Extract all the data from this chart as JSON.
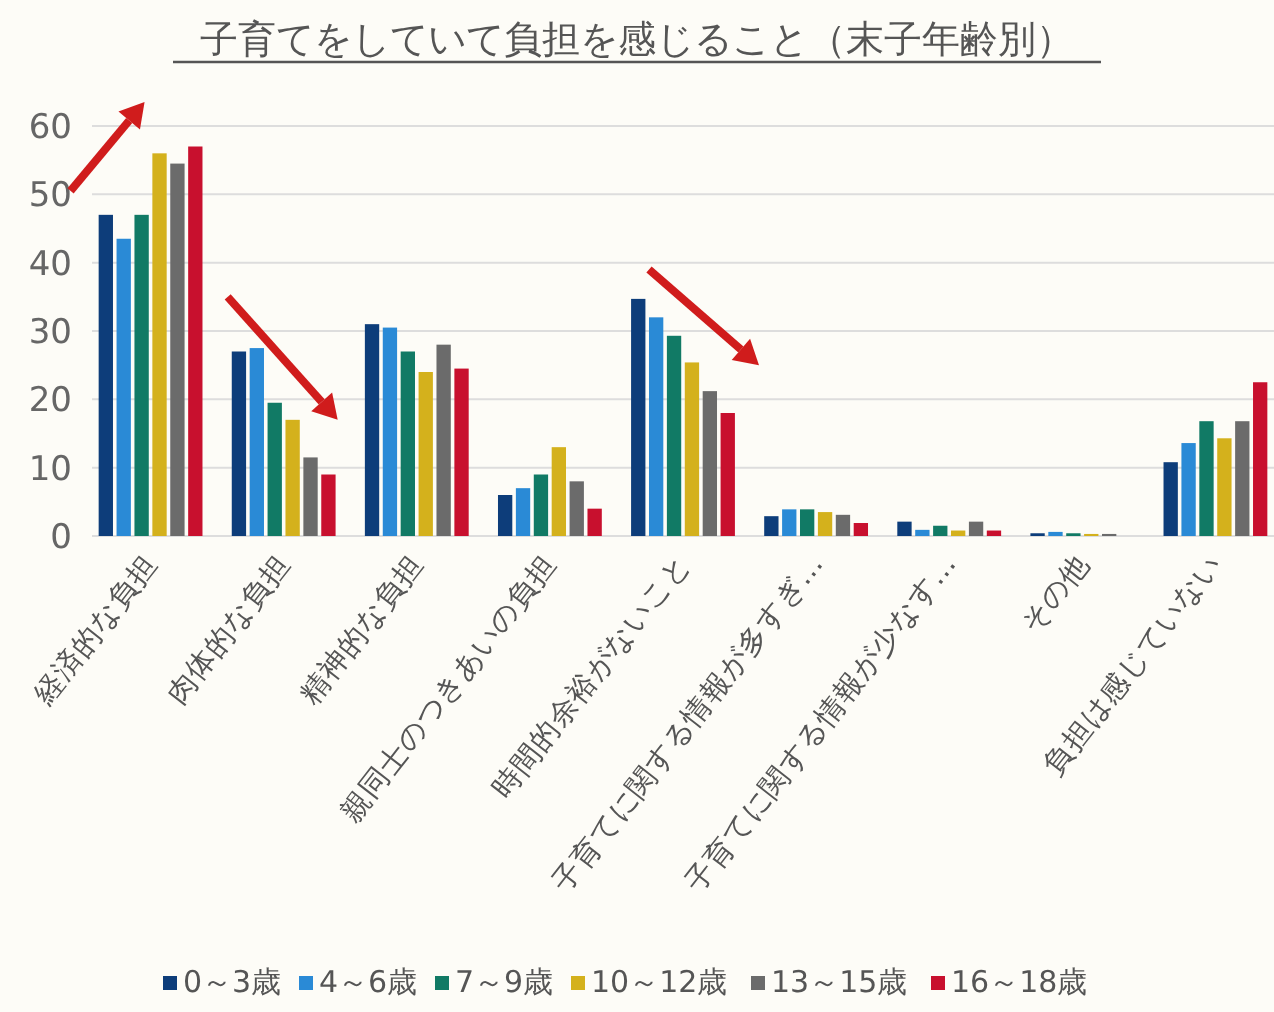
{
  "chart_data": {
    "type": "bar",
    "title": "子育てをしていて負担を感じること（末子年齢別）",
    "categories": [
      "経済的な負担",
      "肉体的な負担",
      "精神的な負担",
      "親同士のつきあいの負担",
      "時間的余裕がないこと",
      "子育てに関する情報が多すぎ…",
      "子育てに関する情報が少なす…",
      "その他",
      "負担は感じていない"
    ],
    "series": [
      {
        "name": "0～3歳",
        "color": "#0d3d7a",
        "values": [
          47,
          27,
          31,
          6,
          34.7,
          2.9,
          2.1,
          0.4,
          10.8
        ]
      },
      {
        "name": "4～6歳",
        "color": "#2a8ad6",
        "values": [
          43.5,
          27.5,
          30.5,
          7,
          32,
          3.9,
          0.9,
          0.6,
          13.6
        ]
      },
      {
        "name": "7～9歳",
        "color": "#117a65",
        "values": [
          47,
          19.5,
          27,
          9,
          29.3,
          3.9,
          1.5,
          0.4,
          16.8
        ]
      },
      {
        "name": "10～12歳",
        "color": "#d4b11c",
        "values": [
          56,
          17,
          24,
          13,
          25.4,
          3.5,
          0.8,
          0.3,
          14.3
        ]
      },
      {
        "name": "13～15歳",
        "color": "#6b6b6b",
        "values": [
          54.5,
          11.5,
          28,
          8,
          21.2,
          3.1,
          2.1,
          0.3,
          16.8
        ]
      },
      {
        "name": "16～18歳",
        "color": "#c8102e",
        "values": [
          57,
          9,
          24.5,
          4,
          18,
          1.9,
          0.8,
          0,
          22.5
        ]
      }
    ],
    "ylim": [
      0,
      60
    ],
    "yticks": [
      0,
      10,
      20,
      30,
      40,
      50,
      60
    ],
    "grid": "y",
    "legend": "bottom"
  }
}
